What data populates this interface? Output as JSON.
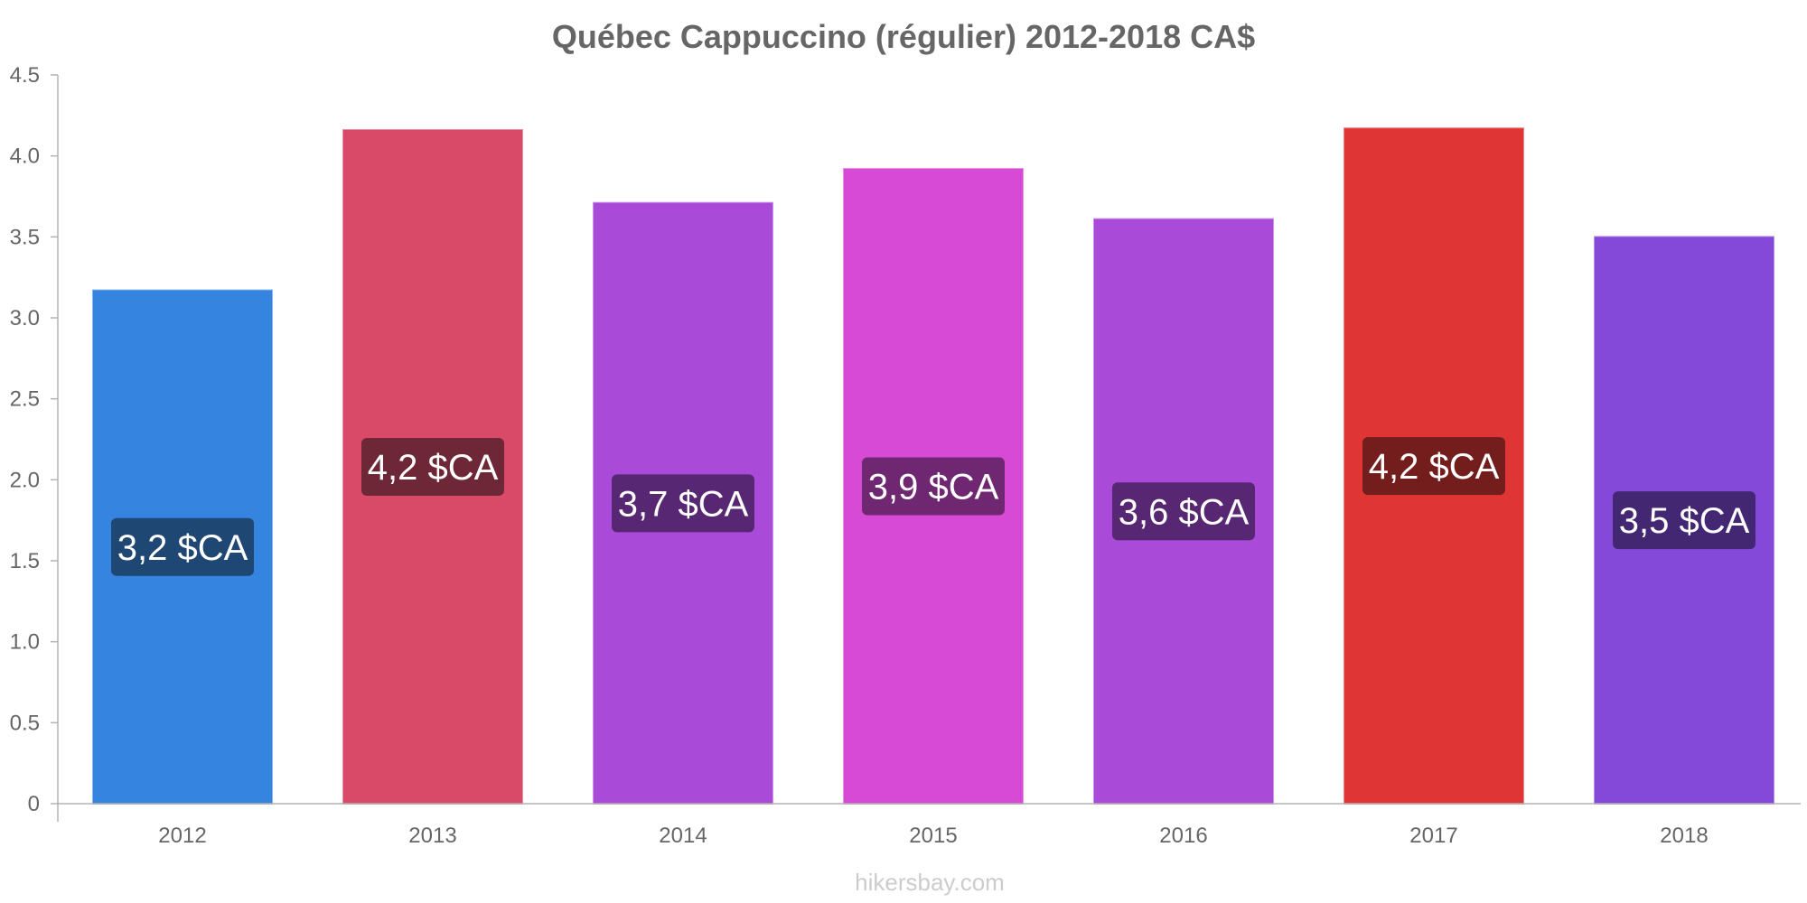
{
  "chart_data": {
    "type": "bar",
    "title": "Québec Cappuccino (régulier) 2012-2018 CA$",
    "categories": [
      "2012",
      "2013",
      "2014",
      "2015",
      "2016",
      "2017",
      "2018"
    ],
    "values": [
      3.17,
      4.16,
      3.71,
      3.92,
      3.61,
      4.17,
      3.5
    ],
    "data_labels": [
      "3,2 $CA",
      "4,2 $CA",
      "3,7 $CA",
      "3,9 $CA",
      "3,6 $CA",
      "4,2 $CA",
      "3,5 $CA"
    ],
    "colors": [
      "#3584e0",
      "#d94a68",
      "#aa4ad9",
      "#d64ad6",
      "#aa4ad9",
      "#e03535",
      "#8449d9"
    ],
    "label_bg_colors": [
      "#1f4773",
      "#6e2736",
      "#572773",
      "#6e2770",
      "#572773",
      "#731d1d",
      "#442773"
    ],
    "ylim": [
      0,
      4.5
    ],
    "yticks": [
      "0",
      "0.5",
      "1.0",
      "1.5",
      "2.0",
      "2.5",
      "3.0",
      "3.5",
      "4.0",
      "4.5"
    ],
    "grid": false,
    "legend": "none"
  },
  "footer": {
    "source": "hikersbay.com"
  }
}
